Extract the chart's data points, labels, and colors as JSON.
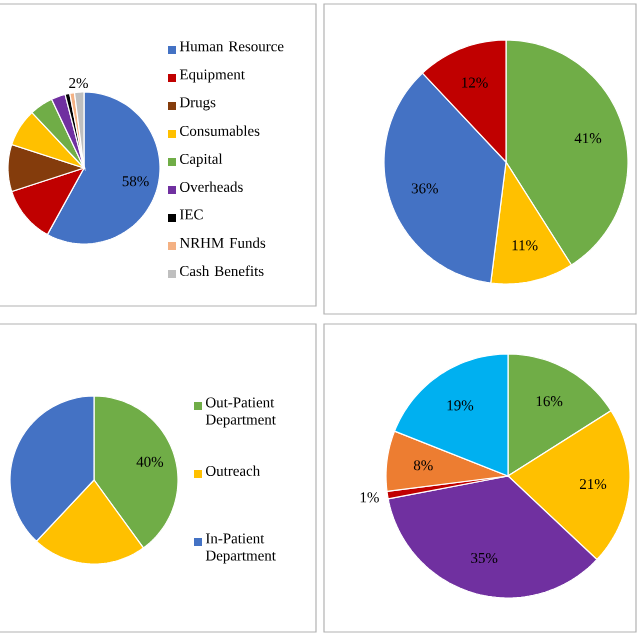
{
  "chart_data": [
    {
      "type": "pie",
      "categories": [
        "Human Resource",
        "Equipment",
        "Drugs",
        "Consumables",
        "Capital",
        "Overheads",
        "IEC",
        "NRHM Funds",
        "Cash Benefits"
      ],
      "values": [
        58,
        12,
        10,
        8,
        5,
        3,
        1,
        1,
        2
      ],
      "colors": [
        "#4472c4",
        "#c00000",
        "#843c0c",
        "#ffc000",
        "#70ad47",
        "#7030a0",
        "#000000",
        "#f4b183",
        "#bfbfbf"
      ],
      "value_labels": [
        "58%",
        null,
        null,
        null,
        null,
        null,
        null,
        null,
        "2%"
      ],
      "legend": "right"
    },
    {
      "type": "pie",
      "categories": [
        null,
        null,
        null,
        null
      ],
      "values": [
        41,
        11,
        36,
        12
      ],
      "colors": [
        "#70ad47",
        "#ffc000",
        "#4472c4",
        "#c00000"
      ],
      "value_labels": [
        "41%",
        "11%",
        "36%",
        "12%"
      ]
    },
    {
      "type": "pie",
      "categories": [
        "Out-Patient Department",
        "Outreach",
        "In-Patient Department"
      ],
      "values": [
        40,
        22,
        38
      ],
      "colors": [
        "#70ad47",
        "#ffc000",
        "#4472c4"
      ],
      "value_labels": [
        "40%",
        null,
        null
      ],
      "legend": "right"
    },
    {
      "type": "pie",
      "categories": [
        null,
        null,
        null,
        null,
        null,
        null
      ],
      "values": [
        16,
        21,
        35,
        1,
        8,
        19
      ],
      "colors": [
        "#70ad47",
        "#ffc000",
        "#7030a0",
        "#c00000",
        "#ed7d31",
        "#00b0f0"
      ],
      "value_labels": [
        "16%",
        "21%",
        "35%",
        "1%",
        "8%",
        "19%"
      ]
    }
  ]
}
